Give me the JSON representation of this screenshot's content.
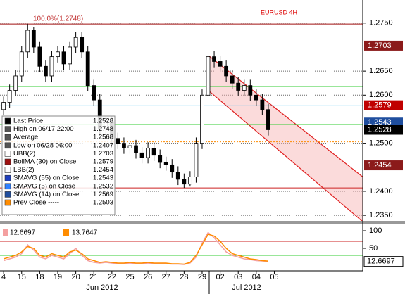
{
  "chart_data": [
    {
      "type": "candlestick",
      "title": "EURUSD 4H",
      "annotation": "100.0%(1.2748)",
      "x": [
        0,
        0.333,
        0.667,
        1,
        1.333,
        1.667,
        2,
        2.333,
        2.667,
        3,
        3.333,
        3.667,
        4,
        4.333,
        4.667,
        5,
        5.333,
        5.667,
        6,
        6.333,
        6.667,
        7,
        7.333,
        7.667,
        8,
        8.333,
        8.667,
        9,
        9.333,
        9.667,
        10,
        10.333,
        10.667,
        11,
        11.333,
        11.667,
        12,
        12.333,
        12.667,
        13,
        13.333,
        13.667,
        14,
        14.333,
        14.667
      ],
      "open": [
        1.257,
        1.2585,
        1.261,
        1.264,
        1.269,
        1.2735,
        1.27,
        1.266,
        1.264,
        1.268,
        1.269,
        1.2665,
        1.27,
        1.272,
        1.269,
        1.262,
        1.259,
        1.253,
        1.2545,
        1.251,
        1.25,
        1.249,
        1.2495,
        1.248,
        1.247,
        1.249,
        1.2475,
        1.246,
        1.2455,
        1.244,
        1.2425,
        1.2415,
        1.243,
        1.25,
        1.26,
        1.268,
        1.267,
        1.266,
        1.264,
        1.2625,
        1.261,
        1.262,
        1.26,
        1.259,
        1.257
      ],
      "high": [
        1.2597,
        1.2622,
        1.2652,
        1.2702,
        1.2748,
        1.2742,
        1.2712,
        1.2672,
        1.2692,
        1.2702,
        1.2702,
        1.2712,
        1.2732,
        1.2732,
        1.2702,
        1.2632,
        1.2602,
        1.2557,
        1.2557,
        1.2522,
        1.2512,
        1.2507,
        1.2507,
        1.2492,
        1.2502,
        1.2502,
        1.2487,
        1.2472,
        1.2467,
        1.2452,
        1.2437,
        1.2442,
        1.2512,
        1.2612,
        1.2692,
        1.2692,
        1.2682,
        1.2672,
        1.2652,
        1.2637,
        1.2632,
        1.2632,
        1.2612,
        1.2602,
        1.2582
      ],
      "low": [
        1.2558,
        1.2573,
        1.2598,
        1.2628,
        1.2678,
        1.2688,
        1.2648,
        1.2628,
        1.2628,
        1.2668,
        1.2653,
        1.2653,
        1.2688,
        1.2678,
        1.2608,
        1.2578,
        1.2518,
        1.2518,
        1.2498,
        1.2488,
        1.2478,
        1.2478,
        1.2468,
        1.2458,
        1.2458,
        1.2463,
        1.2448,
        1.2443,
        1.2428,
        1.2413,
        1.2407,
        1.241,
        1.2418,
        1.2488,
        1.2588,
        1.2658,
        1.2648,
        1.2628,
        1.2613,
        1.2598,
        1.2598,
        1.2588,
        1.2578,
        1.2558,
        1.2516
      ],
      "close": [
        1.2585,
        1.261,
        1.264,
        1.269,
        1.2735,
        1.27,
        1.266,
        1.264,
        1.268,
        1.269,
        1.2665,
        1.27,
        1.272,
        1.269,
        1.262,
        1.259,
        1.253,
        1.2545,
        1.251,
        1.25,
        1.249,
        1.2495,
        1.248,
        1.247,
        1.249,
        1.2475,
        1.246,
        1.2455,
        1.244,
        1.2425,
        1.2415,
        1.243,
        1.25,
        1.26,
        1.268,
        1.267,
        1.266,
        1.264,
        1.2625,
        1.261,
        1.262,
        1.26,
        1.259,
        1.257,
        1.2528
      ],
      "xlim": [
        -0.2,
        19.9
      ],
      "ylim": [
        1.2337,
        1.2798
      ],
      "xticks": [
        {
          "value": 0,
          "label": "4"
        },
        {
          "value": 1,
          "label": "15"
        },
        {
          "value": 2,
          "label": "18"
        },
        {
          "value": 3,
          "label": "19"
        },
        {
          "value": 4,
          "label": "20"
        },
        {
          "value": 5,
          "label": "21"
        },
        {
          "value": 6,
          "label": "22"
        },
        {
          "value": 7,
          "label": "25"
        },
        {
          "value": 8,
          "label": "26"
        },
        {
          "value": 9,
          "label": "27"
        },
        {
          "value": 10,
          "label": "28"
        },
        {
          "value": 11,
          "label": "29"
        },
        {
          "value": 12,
          "label": "02"
        },
        {
          "value": 13,
          "label": "03"
        },
        {
          "value": 14,
          "label": "04"
        },
        {
          "value": 15,
          "label": "05"
        }
      ],
      "months": [
        "Jun 2012",
        "Jul 2012"
      ],
      "yticks": [
        {
          "value": 1.235,
          "label": "1.2350"
        },
        {
          "value": 1.24,
          "label": "1.2400"
        },
        {
          "value": 1.25,
          "label": "1.2500"
        },
        {
          "value": 1.26,
          "label": "1.2600"
        },
        {
          "value": 1.265,
          "label": "1.2650"
        },
        {
          "value": 1.275,
          "label": "1.2750"
        }
      ],
      "grid": true,
      "levels": [
        {
          "value": 1.2748,
          "color": "#a01010"
        },
        {
          "value": 1.2618,
          "color": "#33cc33"
        },
        {
          "value": 1.2578,
          "color": "#33bbee"
        },
        {
          "value": 1.2539,
          "color": "#33cc33"
        },
        {
          "value": 1.2503,
          "color": "#ff8c00"
        },
        {
          "value": 1.2407,
          "color": "#cc2222"
        }
      ],
      "channel": {
        "x": [
          11.4,
          19.9
        ],
        "upper": [
          1.2681,
          1.243
        ],
        "lower": [
          1.2608,
          1.2337
        ],
        "color": "#e02020"
      },
      "price_tags": [
        {
          "value": 1.2703,
          "color": "#8b1a1a"
        },
        {
          "value": 1.2579,
          "color": "#c00000"
        },
        {
          "value": 1.2543,
          "color": "#1f4e9e"
        },
        {
          "value": 1.2528,
          "color": "#000000"
        },
        {
          "value": 1.2454,
          "color": "#8b1a1a"
        }
      ],
      "legend": [
        {
          "label": "Last Price",
          "value": 1.2528,
          "color": "#000000"
        },
        {
          "label": "High on 06/17 22:00",
          "value": 1.2748,
          "color": "#555555"
        },
        {
          "label": "Average",
          "value": 1.2568,
          "color": "#555555"
        },
        {
          "label": "Low on 06/28 06:00",
          "value": 1.2407,
          "color": "#555555"
        },
        {
          "label": "UBB(2)",
          "value": 1.2703,
          "color": "#ffffff"
        },
        {
          "label": "BollMA (30) on Close",
          "value": 1.2579,
          "color": "#a01010"
        },
        {
          "label": "LBB(2)",
          "value": 1.2454,
          "color": "#ffffff"
        },
        {
          "label": "SMAVG (55) on Close",
          "value": 1.2543,
          "color": "#1f3fbf"
        },
        {
          "label": "SMAVG (5) on Close",
          "value": 1.2532,
          "color": "#2f80ff"
        },
        {
          "label": "SMAVG (14) on Close",
          "value": 1.2569,
          "color": "#1f4e9e"
        },
        {
          "label": "Prev Close -----",
          "value": 1.2503,
          "color": "#ff8c00"
        }
      ]
    },
    {
      "type": "line",
      "ylim": [
        -14,
        120
      ],
      "yticks": [
        100,
        50
      ],
      "levels": [
        {
          "value": 70,
          "color": "#cc2222"
        },
        {
          "value": 30,
          "color": "#33cc33"
        }
      ],
      "series": [
        {
          "color": "#f4a0a0",
          "values": [
            15,
            20,
            25,
            35,
            60,
            45,
            25,
            20,
            30,
            25,
            20,
            35,
            50,
            30,
            15,
            10,
            8,
            10,
            8,
            6,
            6,
            8,
            6,
            6,
            8,
            6,
            6,
            6,
            5,
            5,
            4,
            8,
            25,
            65,
            95,
            80,
            60,
            40,
            30,
            25,
            20,
            18,
            15,
            14,
            12.6697
          ]
        },
        {
          "color": "#ff8c00",
          "values": [
            20,
            25,
            30,
            40,
            55,
            50,
            30,
            25,
            35,
            30,
            25,
            40,
            45,
            35,
            20,
            15,
            10,
            12,
            10,
            8,
            8,
            10,
            8,
            8,
            10,
            8,
            8,
            8,
            6,
            6,
            5,
            10,
            30,
            60,
            90,
            85,
            70,
            50,
            35,
            30,
            25,
            20,
            18,
            15,
            13.7647
          ]
        }
      ]
    }
  ]
}
